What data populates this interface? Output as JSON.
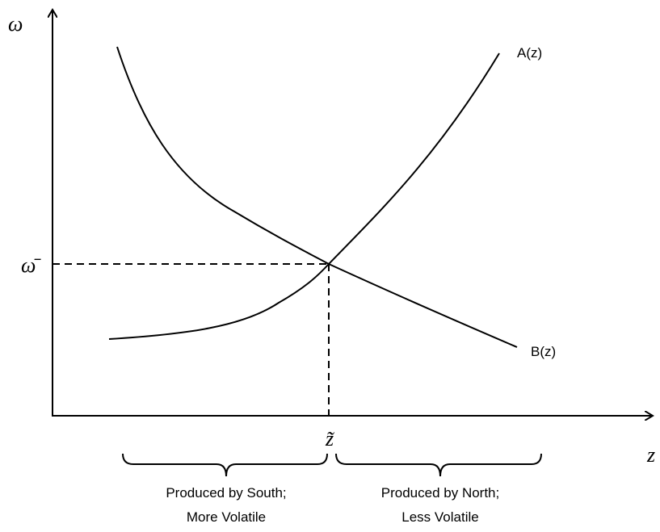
{
  "axes": {
    "y_label": "ω",
    "x_label": "z"
  },
  "intersection": {
    "y_label": "ω̄",
    "x_label": "z̃"
  },
  "curves": {
    "a": "A(z)",
    "b": "B(z)"
  },
  "regions": [
    {
      "line1": "Produced by South;",
      "line2": "More Volatile"
    },
    {
      "line1": "Produced by North;",
      "line2": "Less Volatile"
    }
  ]
}
